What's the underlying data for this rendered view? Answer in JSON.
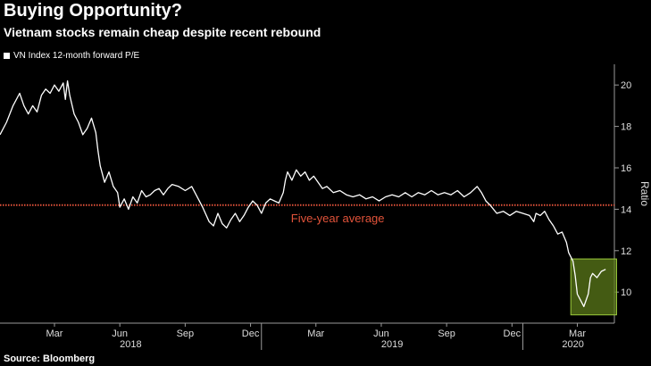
{
  "title": "Buying Opportunity?",
  "subtitle": "Vietnam stocks remain cheap despite recent rebound",
  "legend_label": "VN Index 12-month forward P/E",
  "source": "Source: Bloomberg",
  "colors": {
    "background": "#000000",
    "line": "#ffffff",
    "average": "#e2533a",
    "highlight_fill": "#5b7a1a",
    "highlight_stroke": "#9ccc3c",
    "grid": "#3a3a3a"
  },
  "chart_data": {
    "type": "line",
    "title": "Buying Opportunity?",
    "subtitle": "Vietnam stocks remain cheap despite recent rebound",
    "ylabel": "Ratio",
    "ylim": [
      8.5,
      21
    ],
    "y_ticks": [
      10,
      12,
      14,
      16,
      18,
      20
    ],
    "x_ticks": [
      {
        "label": "Mar",
        "t": 2.5
      },
      {
        "label": "Jun",
        "t": 5.5
      },
      {
        "label": "Sep",
        "t": 8.5
      },
      {
        "label": "Dec",
        "t": 11.5
      },
      {
        "label": "Mar",
        "t": 14.5
      },
      {
        "label": "Jun",
        "t": 17.5
      },
      {
        "label": "Sep",
        "t": 20.5
      },
      {
        "label": "Dec",
        "t": 23.5
      },
      {
        "label": "Mar",
        "t": 26.5
      }
    ],
    "year_labels": [
      {
        "label": "2018",
        "t": 6
      },
      {
        "label": "2019",
        "t": 18
      },
      {
        "label": "2020",
        "t": 26.3
      }
    ],
    "year_dividers": [
      12,
      24
    ],
    "x_range": [
      0,
      28.2
    ],
    "series": [
      {
        "name": "VN Index 12-month forward P/E",
        "points": [
          [
            0,
            17.6
          ],
          [
            0.3,
            18.2
          ],
          [
            0.6,
            19.0
          ],
          [
            0.9,
            19.6
          ],
          [
            1.1,
            19.0
          ],
          [
            1.3,
            18.6
          ],
          [
            1.5,
            19.0
          ],
          [
            1.7,
            18.7
          ],
          [
            1.9,
            19.5
          ],
          [
            2.1,
            19.8
          ],
          [
            2.3,
            19.6
          ],
          [
            2.5,
            20.0
          ],
          [
            2.7,
            19.7
          ],
          [
            2.9,
            20.1
          ],
          [
            3.0,
            19.3
          ],
          [
            3.1,
            20.2
          ],
          [
            3.2,
            19.5
          ],
          [
            3.4,
            18.6
          ],
          [
            3.6,
            18.2
          ],
          [
            3.8,
            17.6
          ],
          [
            4.0,
            17.9
          ],
          [
            4.2,
            18.4
          ],
          [
            4.4,
            17.7
          ],
          [
            4.5,
            16.8
          ],
          [
            4.6,
            16.1
          ],
          [
            4.8,
            15.3
          ],
          [
            5.0,
            15.8
          ],
          [
            5.2,
            15.1
          ],
          [
            5.4,
            14.8
          ],
          [
            5.5,
            14.1
          ],
          [
            5.7,
            14.5
          ],
          [
            5.9,
            14.0
          ],
          [
            6.1,
            14.6
          ],
          [
            6.3,
            14.3
          ],
          [
            6.5,
            14.9
          ],
          [
            6.7,
            14.6
          ],
          [
            6.9,
            14.7
          ],
          [
            7.1,
            14.9
          ],
          [
            7.3,
            15.0
          ],
          [
            7.5,
            14.7
          ],
          [
            7.7,
            15.0
          ],
          [
            7.9,
            15.2
          ],
          [
            8.2,
            15.1
          ],
          [
            8.5,
            14.9
          ],
          [
            8.8,
            15.1
          ],
          [
            9.0,
            14.7
          ],
          [
            9.3,
            14.1
          ],
          [
            9.6,
            13.4
          ],
          [
            9.8,
            13.2
          ],
          [
            10.0,
            13.8
          ],
          [
            10.2,
            13.3
          ],
          [
            10.4,
            13.1
          ],
          [
            10.6,
            13.5
          ],
          [
            10.8,
            13.8
          ],
          [
            11.0,
            13.4
          ],
          [
            11.2,
            13.7
          ],
          [
            11.4,
            14.1
          ],
          [
            11.6,
            14.4
          ],
          [
            11.8,
            14.2
          ],
          [
            12.0,
            13.8
          ],
          [
            12.2,
            14.3
          ],
          [
            12.4,
            14.5
          ],
          [
            12.6,
            14.4
          ],
          [
            12.8,
            14.3
          ],
          [
            13.0,
            14.8
          ],
          [
            13.1,
            15.4
          ],
          [
            13.2,
            15.8
          ],
          [
            13.4,
            15.4
          ],
          [
            13.6,
            15.9
          ],
          [
            13.8,
            15.6
          ],
          [
            14.0,
            15.8
          ],
          [
            14.2,
            15.4
          ],
          [
            14.4,
            15.6
          ],
          [
            14.6,
            15.3
          ],
          [
            14.8,
            15.0
          ],
          [
            15.0,
            15.1
          ],
          [
            15.3,
            14.8
          ],
          [
            15.6,
            14.9
          ],
          [
            15.9,
            14.7
          ],
          [
            16.2,
            14.6
          ],
          [
            16.5,
            14.7
          ],
          [
            16.8,
            14.5
          ],
          [
            17.1,
            14.6
          ],
          [
            17.4,
            14.4
          ],
          [
            17.7,
            14.6
          ],
          [
            18.0,
            14.7
          ],
          [
            18.3,
            14.6
          ],
          [
            18.6,
            14.8
          ],
          [
            18.9,
            14.6
          ],
          [
            19.2,
            14.8
          ],
          [
            19.5,
            14.7
          ],
          [
            19.8,
            14.9
          ],
          [
            20.1,
            14.7
          ],
          [
            20.4,
            14.8
          ],
          [
            20.7,
            14.7
          ],
          [
            21.0,
            14.9
          ],
          [
            21.3,
            14.6
          ],
          [
            21.6,
            14.8
          ],
          [
            21.9,
            15.1
          ],
          [
            22.1,
            14.8
          ],
          [
            22.3,
            14.4
          ],
          [
            22.5,
            14.2
          ],
          [
            22.8,
            13.8
          ],
          [
            23.1,
            13.9
          ],
          [
            23.4,
            13.7
          ],
          [
            23.7,
            13.9
          ],
          [
            24.0,
            13.8
          ],
          [
            24.3,
            13.7
          ],
          [
            24.5,
            13.4
          ],
          [
            24.6,
            13.8
          ],
          [
            24.8,
            13.7
          ],
          [
            25.0,
            13.9
          ],
          [
            25.2,
            13.5
          ],
          [
            25.4,
            13.2
          ],
          [
            25.6,
            12.8
          ],
          [
            25.8,
            12.9
          ],
          [
            26.0,
            12.4
          ],
          [
            26.1,
            11.9
          ],
          [
            26.3,
            11.5
          ],
          [
            26.4,
            10.8
          ],
          [
            26.5,
            9.9
          ],
          [
            26.6,
            9.7
          ],
          [
            26.8,
            9.3
          ],
          [
            27.0,
            9.9
          ],
          [
            27.1,
            10.7
          ],
          [
            27.2,
            10.9
          ],
          [
            27.4,
            10.7
          ],
          [
            27.6,
            11.0
          ],
          [
            27.8,
            11.1
          ]
        ]
      }
    ],
    "average": {
      "label": "Five-year average",
      "value": 14.2
    },
    "highlight": {
      "t_range": [
        26.2,
        28.3
      ],
      "y_range": [
        8.9,
        11.6
      ]
    }
  }
}
